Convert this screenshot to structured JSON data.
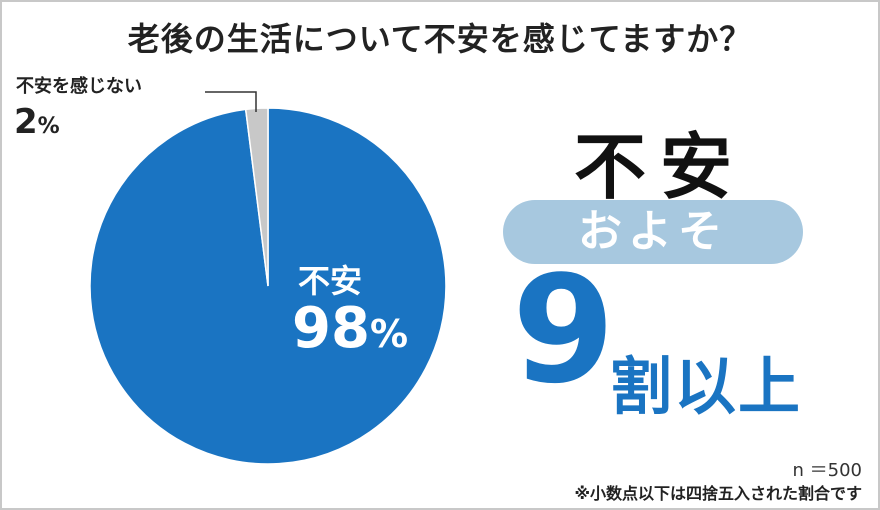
{
  "title": "老後の生活について不安を感じてますか？",
  "chart_data": {
    "type": "pie",
    "categories": [
      "不安",
      "不安を感じない"
    ],
    "values": [
      98,
      2
    ],
    "unit": "%",
    "colors": [
      "#1a74c2",
      "#c8c8c8"
    ],
    "slices": [
      {
        "label": "不安",
        "value": "98",
        "unit": "%"
      },
      {
        "label": "不安を感じない",
        "value": "2",
        "unit": "%"
      }
    ]
  },
  "headline": {
    "word": "不安",
    "pill": "およそ",
    "number": "9",
    "suffix": "割以上"
  },
  "footer": {
    "sample": "n ＝500",
    "note": "※小数点以下は四捨五入された割合です"
  }
}
